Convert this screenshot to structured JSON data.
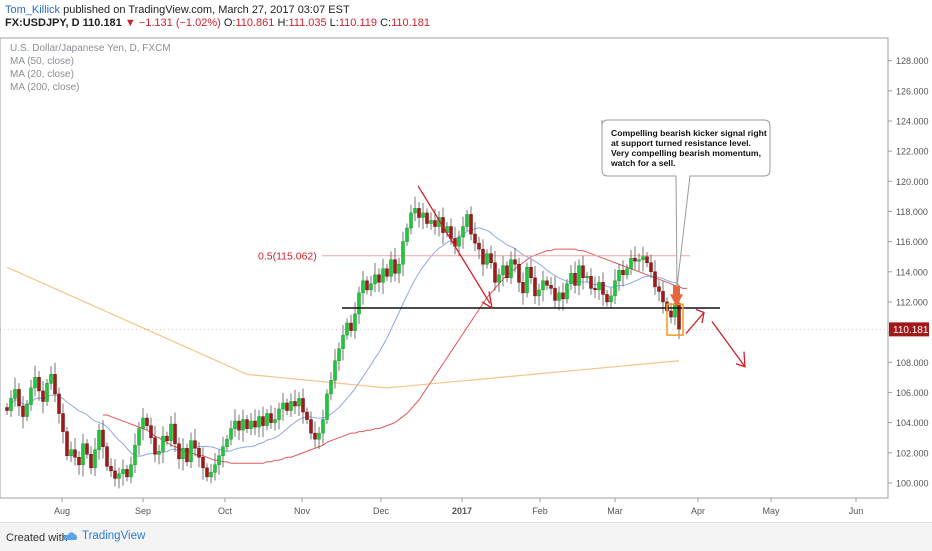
{
  "header": {
    "author": "Tom_Killick",
    "published": "published on TradingView.com, March 27, 2017 03:07 EST",
    "symbol": "FX:USDJPY, D",
    "last": "110.181",
    "change": "−1.131 (−1.02%)",
    "o_label": "O:",
    "o": "110.861",
    "h_label": "H:",
    "h": "111.035",
    "l_label": "L:",
    "l": "110.119",
    "c_label": "C:",
    "c": "110.181"
  },
  "legend": {
    "title": "U.S. Dollar/Japanese Yen, D, FXCM",
    "ma50": "MA (50, close)",
    "ma20": "MA (20, close)",
    "ma200": "MA (200, close)"
  },
  "annotation": {
    "line1": "Compelling bearish kicker signal right",
    "line2": "at support turned resistance level.",
    "line3": "Very compelling bearish momentum,",
    "line4": "watch for a sell."
  },
  "fib_label": "0.5(115.062)",
  "last_price_label": "110.181",
  "footer": {
    "created": "Created with",
    "brand": "TradingView"
  },
  "colors": {
    "up": "#1ec83a",
    "down": "#a01a1a",
    "ma50": "#e05858",
    "ma20": "#8fa8e8",
    "ma200": "#f5c488",
    "accent_red": "#d0202a"
  },
  "chart_data": {
    "type": "candlestick",
    "y_ticks": [
      100,
      102,
      104,
      106,
      108,
      110,
      112,
      114,
      116,
      118,
      120,
      122,
      124,
      126,
      128
    ],
    "y_tick_labels": [
      "100.000",
      "102.000",
      "104.000",
      "106.000",
      "108.000",
      "110.000",
      "112.000",
      "114.000",
      "116.000",
      "118.000",
      "120.000",
      "122.000",
      "124.000",
      "126.000",
      "128.000"
    ],
    "x_labels": [
      "Aug",
      "Sep",
      "Oct",
      "Nov",
      "Dec",
      "2017",
      "Feb",
      "Mar",
      "Apr",
      "May",
      "Jun"
    ],
    "ylim": [
      99,
      129.5
    ],
    "fib_level": 115.062,
    "support_level": 111.6,
    "last_price": 110.181,
    "closes": [
      104.8,
      105.6,
      106.2,
      105.1,
      104.4,
      105.2,
      106.3,
      107.0,
      106.1,
      105.4,
      106.6,
      107.2,
      105.9,
      104.6,
      103.4,
      101.8,
      102.2,
      101.7,
      101.2,
      102.6,
      101.9,
      101.0,
      102.2,
      103.5,
      102.4,
      101.1,
      100.8,
      100.3,
      100.6,
      100.9,
      100.4,
      101.2,
      102.5,
      103.6,
      104.3,
      103.8,
      103.0,
      101.9,
      102.1,
      103.1,
      102.8,
      103.9,
      102.6,
      101.6,
      102.3,
      101.4,
      102.8,
      102.3,
      101.7,
      101.0,
      100.4,
      100.7,
      101.2,
      101.8,
      102.4,
      102.9,
      103.6,
      104.1,
      103.5,
      104.2,
      103.6,
      104.1,
      103.7,
      104.4,
      103.8,
      104.6,
      104.0,
      104.2,
      104.9,
      105.3,
      104.8,
      105.4,
      105.1,
      105.6,
      104.7,
      104.2,
      103.3,
      102.9,
      103.3,
      104.2,
      105.9,
      106.8,
      108.1,
      108.9,
      109.8,
      110.6,
      110.1,
      111.2,
      112.6,
      113.4,
      112.8,
      113.2,
      113.8,
      113.3,
      114.2,
      113.7,
      114.8,
      113.9,
      114.5,
      116.0,
      116.9,
      117.9,
      118.2,
      117.6,
      117.9,
      117.2,
      117.4,
      117.0,
      117.6,
      116.6,
      117.0,
      116.2,
      115.7,
      116.3,
      117.0,
      117.8,
      116.5,
      115.9,
      115.5,
      114.5,
      115.2,
      114.6,
      113.3,
      113.8,
      114.4,
      113.6,
      114.8,
      114.5,
      113.3,
      112.6,
      114.3,
      113.6,
      112.4,
      112.8,
      113.4,
      113.1,
      112.9,
      112.1,
      112.6,
      112.2,
      113.2,
      113.9,
      113.1,
      114.4,
      113.6,
      113.7,
      112.9,
      112.8,
      113.3,
      112.5,
      112.0,
      112.4,
      113.4,
      114.1,
      113.8,
      114.2,
      114.9,
      114.7,
      114.8,
      115.0,
      114.6,
      114.0,
      113.0,
      112.7,
      112.0,
      111.4,
      111.0,
      111.9,
      110.2
    ],
    "ma50": [
      104.5,
      104.5,
      104.4,
      104.3,
      104.2,
      104.1,
      104.0,
      103.9,
      103.8,
      103.7,
      103.6,
      103.5,
      103.3,
      103.1,
      103.0,
      102.8,
      102.7,
      102.5,
      102.4,
      102.3,
      102.2,
      102.1,
      102.0,
      101.9,
      101.8,
      101.8,
      101.7,
      101.6,
      101.5,
      101.5,
      101.4,
      101.4,
      101.3,
      101.3,
      101.3,
      101.3,
      101.3,
      101.3,
      101.3,
      101.3,
      101.3,
      101.4,
      101.4,
      101.5,
      101.5,
      101.6,
      101.7,
      101.7,
      101.8,
      101.9,
      102.0,
      102.1,
      102.2,
      102.3,
      102.4,
      102.5,
      102.7,
      102.8,
      102.9,
      103.0,
      103.1,
      103.2,
      103.3,
      103.3,
      103.4,
      103.4,
      103.5,
      103.5,
      103.6,
      103.6,
      103.7,
      103.8,
      103.9,
      104.0,
      104.2,
      104.4,
      104.6,
      104.9,
      105.2,
      105.5,
      105.9,
      106.3,
      106.7,
      107.1,
      107.5,
      107.9,
      108.3,
      108.7,
      109.1,
      109.5,
      109.9,
      110.3,
      110.7,
      111.1,
      111.5,
      111.9,
      112.3,
      112.6,
      112.9,
      113.2,
      113.5,
      113.8,
      114.0,
      114.2,
      114.4,
      114.6,
      114.8,
      115.0,
      115.1,
      115.2,
      115.3,
      115.4,
      115.4,
      115.5,
      115.5,
      115.5,
      115.5,
      115.5,
      115.5,
      115.4,
      115.4,
      115.3,
      115.2,
      115.1,
      115.0,
      114.9,
      114.8,
      114.7,
      114.6,
      114.5,
      114.4,
      114.3,
      114.2,
      114.1,
      114.0,
      113.9,
      113.8,
      113.7,
      113.6,
      113.5,
      113.4,
      113.3,
      113.2,
      113.1,
      113.0,
      112.9,
      112.9
    ]
  }
}
